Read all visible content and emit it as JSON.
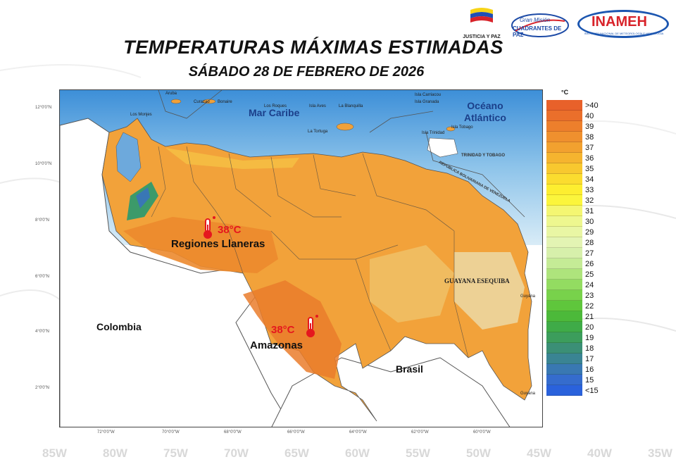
{
  "logos": {
    "justicia_caption": "JUSTICIA Y PAZ",
    "cuadrantes_line1": "Gran Misión",
    "cuadrantes_line2": "CUADRANTES DE PAZ",
    "inameh": "INAMEH",
    "inameh_sub": "INSTITUTO NACIONAL DE METEOROLOGÍA E HIDROLOGÍA"
  },
  "title": "TEMPERATURAS MÁXIMAS ESTIMADAS",
  "subtitle": "SÁBADO 28 DE FEBRERO DE 2026",
  "map": {
    "sea": "Mar Caribe",
    "ocean_line1": "Océano",
    "ocean_line2": "Atlántico",
    "countries": {
      "colombia": "Colombia",
      "brasil": "Brasil"
    },
    "guayana": "GUAYANA ESEQUIBA",
    "trinidad": "TRINIDAD Y TOBAGO",
    "border_label": "REPÚBLICA BOLIVARIANA DE VENEZUELA",
    "small_places": {
      "aruba": "Aruba",
      "curazao": "Curazao",
      "bonaire": "Bonaire",
      "isla_tortuga": "La Tortuga",
      "isla_blanquilla": "La Blanquilla",
      "los_roques": "Los Roques",
      "isla_aves": "Isla Aves",
      "los_monjes": "Los Monjes",
      "isla_carriacou": "Isla Carriacou",
      "isla_granada": "Isla Granada",
      "isla_tobago": "Isla Tobago",
      "isla_trinidad": "Isla Trinidad",
      "guyana_top": "Guyana",
      "guyana_bottom": "Guyana"
    },
    "regions": [
      {
        "name": "Regiones Llaneras",
        "temp": "38°C"
      },
      {
        "name": "Amazonas",
        "temp": "38°C"
      }
    ],
    "lat_ticks": [
      "12°0'0\"N",
      "10°0'0\"N",
      "8°0'0\"N",
      "6°0'0\"N",
      "4°0'0\"N",
      "2°0'0\"N"
    ],
    "lon_ticks": [
      "72°0'0\"W",
      "70°0'0\"W",
      "68°0'0\"W",
      "66°0'0\"W",
      "64°0'0\"W",
      "62°0'0\"W",
      "60°0'0\"W"
    ]
  },
  "legend": {
    "unit": "°C",
    "entries": [
      {
        "label": ">40",
        "color": "#e8612a"
      },
      {
        "label": "40",
        "color": "#ea6f2b"
      },
      {
        "label": "39",
        "color": "#ed7f2c"
      },
      {
        "label": "38",
        "color": "#ef902e"
      },
      {
        "label": "37",
        "color": "#f2a12f"
      },
      {
        "label": "36",
        "color": "#f5b42f"
      },
      {
        "label": "35",
        "color": "#f8c82f"
      },
      {
        "label": "34",
        "color": "#fbdc2f"
      },
      {
        "label": "33",
        "color": "#fdee30"
      },
      {
        "label": "32",
        "color": "#fbf53c"
      },
      {
        "label": "31",
        "color": "#f4f672"
      },
      {
        "label": "30",
        "color": "#eef78f"
      },
      {
        "label": "29",
        "color": "#e9f6a4"
      },
      {
        "label": "28",
        "color": "#e3f4b3"
      },
      {
        "label": "27",
        "color": "#d7f0ab"
      },
      {
        "label": "26",
        "color": "#c5eb96"
      },
      {
        "label": "25",
        "color": "#aee47c"
      },
      {
        "label": "24",
        "color": "#93dc61"
      },
      {
        "label": "23",
        "color": "#78d24b"
      },
      {
        "label": "22",
        "color": "#5fc63c"
      },
      {
        "label": "21",
        "color": "#4cb93a"
      },
      {
        "label": "20",
        "color": "#3fab48"
      },
      {
        "label": "19",
        "color": "#3c9d5c"
      },
      {
        "label": "18",
        "color": "#3b8f76"
      },
      {
        "label": "17",
        "color": "#3a8493"
      },
      {
        "label": "16",
        "color": "#3978b2"
      },
      {
        "label": "15",
        "color": "#356ccd"
      },
      {
        "label": "<15",
        "color": "#2a62dc"
      }
    ]
  },
  "background_lon_labels": [
    "85W",
    "80W",
    "75W",
    "70W",
    "65W",
    "60W",
    "55W",
    "50W",
    "45W",
    "40W",
    "35W"
  ]
}
